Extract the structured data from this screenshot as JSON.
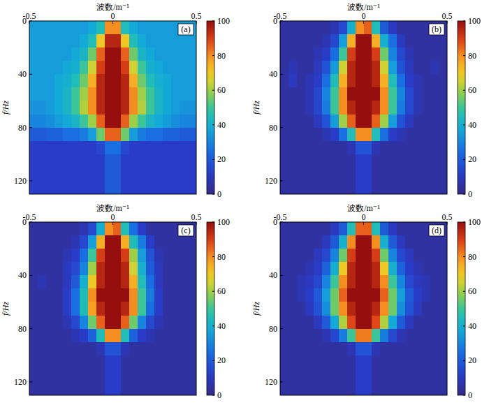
{
  "chart_data": [
    {
      "type": "heatmap",
      "title": "(a)",
      "x_label": "波数/m⁻¹",
      "y_label": "f/Hz",
      "xlim": [
        -0.5,
        0.5
      ],
      "xticks": [
        -0.5,
        0,
        0.5
      ],
      "ylim": [
        0,
        130
      ],
      "yticks": [
        0,
        40,
        80,
        120
      ],
      "x_bins": [
        -0.5,
        -0.45,
        -0.4,
        -0.35,
        -0.3,
        -0.25,
        -0.2,
        -0.15,
        -0.1,
        -0.05,
        0,
        0.05,
        0.1,
        0.15,
        0.2,
        0.25,
        0.3,
        0.35,
        0.4,
        0.45,
        0.5
      ],
      "y_bins": [
        0,
        10,
        20,
        30,
        40,
        50,
        60,
        70,
        80,
        90,
        100,
        110,
        120,
        130
      ],
      "values": [
        [
          35,
          35,
          35,
          35,
          35,
          35,
          35,
          38,
          45,
          80,
          80,
          45,
          38,
          35,
          35,
          35,
          35,
          35,
          35,
          35
        ],
        [
          35,
          35,
          35,
          35,
          35,
          35,
          38,
          45,
          70,
          95,
          95,
          70,
          45,
          38,
          35,
          35,
          35,
          35,
          35,
          35
        ],
        [
          35,
          35,
          35,
          35,
          35,
          38,
          42,
          55,
          85,
          100,
          100,
          85,
          55,
          42,
          38,
          35,
          35,
          35,
          35,
          35
        ],
        [
          35,
          35,
          35,
          35,
          38,
          40,
          50,
          65,
          90,
          100,
          100,
          90,
          65,
          50,
          40,
          38,
          35,
          35,
          35,
          35
        ],
        [
          35,
          35,
          35,
          38,
          40,
          45,
          55,
          75,
          95,
          100,
          100,
          95,
          75,
          55,
          45,
          40,
          38,
          35,
          35,
          35
        ],
        [
          35,
          35,
          35,
          38,
          42,
          50,
          60,
          80,
          95,
          100,
          100,
          95,
          80,
          60,
          50,
          42,
          38,
          35,
          35,
          35
        ],
        [
          33,
          33,
          35,
          38,
          42,
          50,
          62,
          80,
          95,
          100,
          100,
          95,
          80,
          62,
          50,
          42,
          38,
          35,
          33,
          33
        ],
        [
          30,
          30,
          32,
          35,
          38,
          42,
          50,
          60,
          85,
          100,
          100,
          85,
          60,
          50,
          42,
          38,
          35,
          32,
          30,
          30
        ],
        [
          20,
          20,
          22,
          22,
          25,
          25,
          28,
          35,
          55,
          85,
          85,
          55,
          35,
          28,
          25,
          25,
          22,
          22,
          20,
          20
        ],
        [
          12,
          12,
          12,
          12,
          12,
          12,
          12,
          12,
          15,
          25,
          25,
          15,
          12,
          12,
          12,
          12,
          12,
          12,
          12,
          12
        ],
        [
          12,
          12,
          12,
          12,
          12,
          12,
          12,
          12,
          12,
          20,
          20,
          12,
          12,
          12,
          12,
          12,
          12,
          12,
          12,
          12
        ],
        [
          12,
          12,
          12,
          12,
          12,
          12,
          12,
          12,
          12,
          20,
          20,
          12,
          12,
          12,
          12,
          12,
          12,
          12,
          12,
          12
        ],
        [
          12,
          12,
          12,
          12,
          12,
          12,
          12,
          12,
          12,
          20,
          20,
          12,
          12,
          12,
          12,
          12,
          12,
          12,
          12,
          12
        ]
      ],
      "colorbar_range": [
        0,
        100
      ],
      "colorbar_ticks": [
        0,
        20,
        40,
        60,
        80,
        100
      ]
    },
    {
      "type": "heatmap",
      "title": "(b)",
      "x_label": "波数/m⁻¹",
      "y_label": "f/Hz",
      "xlim": [
        -0.5,
        0.5
      ],
      "xticks": [
        -0.5,
        0,
        0.5
      ],
      "ylim": [
        0,
        130
      ],
      "yticks": [
        0,
        40,
        80,
        120
      ],
      "x_bins": [
        -0.5,
        -0.45,
        -0.4,
        -0.35,
        -0.3,
        -0.25,
        -0.2,
        -0.15,
        -0.1,
        -0.05,
        0,
        0.05,
        0.1,
        0.15,
        0.2,
        0.25,
        0.3,
        0.35,
        0.4,
        0.45,
        0.5
      ],
      "y_bins": [
        0,
        10,
        20,
        30,
        40,
        50,
        60,
        70,
        80,
        90,
        100,
        110,
        120,
        130
      ],
      "values": [
        [
          5,
          5,
          5,
          5,
          5,
          5,
          8,
          15,
          40,
          80,
          85,
          45,
          20,
          10,
          5,
          5,
          5,
          5,
          5,
          5
        ],
        [
          5,
          5,
          5,
          5,
          5,
          8,
          15,
          35,
          75,
          100,
          100,
          75,
          40,
          25,
          10,
          5,
          5,
          5,
          5,
          5
        ],
        [
          5,
          5,
          5,
          5,
          8,
          12,
          25,
          50,
          90,
          100,
          100,
          90,
          55,
          30,
          15,
          8,
          5,
          5,
          5,
          5
        ],
        [
          5,
          8,
          5,
          5,
          10,
          18,
          35,
          65,
          95,
          100,
          100,
          95,
          65,
          35,
          18,
          10,
          5,
          5,
          8,
          5
        ],
        [
          5,
          10,
          5,
          8,
          12,
          25,
          45,
          75,
          95,
          100,
          100,
          95,
          75,
          45,
          25,
          12,
          8,
          5,
          5,
          5
        ],
        [
          5,
          5,
          5,
          8,
          15,
          30,
          50,
          80,
          100,
          100,
          100,
          100,
          80,
          50,
          30,
          15,
          8,
          5,
          5,
          5
        ],
        [
          5,
          5,
          5,
          8,
          15,
          28,
          50,
          80,
          95,
          100,
          100,
          95,
          80,
          50,
          28,
          15,
          8,
          5,
          5,
          5
        ],
        [
          5,
          5,
          5,
          5,
          10,
          18,
          35,
          60,
          85,
          100,
          100,
          85,
          60,
          35,
          18,
          10,
          5,
          5,
          5,
          5
        ],
        [
          5,
          5,
          5,
          5,
          5,
          8,
          12,
          25,
          45,
          80,
          80,
          45,
          25,
          12,
          8,
          5,
          5,
          5,
          5,
          5
        ],
        [
          5,
          5,
          5,
          5,
          5,
          5,
          5,
          5,
          8,
          18,
          18,
          8,
          5,
          5,
          5,
          5,
          5,
          5,
          5,
          5
        ],
        [
          5,
          5,
          5,
          5,
          5,
          5,
          5,
          5,
          5,
          12,
          12,
          5,
          5,
          5,
          5,
          5,
          5,
          5,
          5,
          5
        ],
        [
          5,
          5,
          5,
          5,
          5,
          5,
          5,
          5,
          5,
          12,
          12,
          5,
          5,
          5,
          5,
          5,
          5,
          5,
          5,
          5
        ],
        [
          5,
          5,
          5,
          5,
          5,
          5,
          5,
          5,
          5,
          12,
          12,
          5,
          5,
          5,
          5,
          5,
          5,
          5,
          5,
          5
        ]
      ],
      "colorbar_range": [
        0,
        100
      ],
      "colorbar_ticks": [
        0,
        20,
        40,
        60,
        80,
        100
      ]
    },
    {
      "type": "heatmap",
      "title": "(c)",
      "x_label": "波数/m⁻¹",
      "y_label": "f/Hz",
      "xlim": [
        -0.5,
        0.5
      ],
      "xticks": [
        -0.5,
        0,
        0.5
      ],
      "ylim": [
        0,
        130
      ],
      "yticks": [
        0,
        40,
        80,
        120
      ],
      "x_bins": [
        -0.5,
        -0.45,
        -0.4,
        -0.35,
        -0.3,
        -0.25,
        -0.2,
        -0.15,
        -0.1,
        -0.05,
        0,
        0.05,
        0.1,
        0.15,
        0.2,
        0.25,
        0.3,
        0.35,
        0.4,
        0.45,
        0.5
      ],
      "y_bins": [
        0,
        10,
        20,
        30,
        40,
        50,
        60,
        70,
        80,
        90,
        100,
        110,
        120,
        130
      ],
      "values": [
        [
          5,
          5,
          5,
          5,
          5,
          5,
          8,
          15,
          40,
          80,
          85,
          45,
          25,
          12,
          5,
          5,
          5,
          5,
          5,
          5
        ],
        [
          5,
          5,
          5,
          5,
          5,
          8,
          15,
          35,
          75,
          100,
          100,
          75,
          45,
          28,
          12,
          5,
          5,
          5,
          5,
          5
        ],
        [
          5,
          5,
          5,
          5,
          8,
          12,
          25,
          50,
          90,
          100,
          100,
          90,
          60,
          35,
          18,
          8,
          5,
          5,
          5,
          5
        ],
        [
          5,
          5,
          5,
          5,
          10,
          15,
          30,
          60,
          95,
          100,
          100,
          95,
          65,
          40,
          20,
          10,
          5,
          5,
          5,
          5
        ],
        [
          5,
          8,
          5,
          5,
          10,
          20,
          40,
          70,
          95,
          100,
          100,
          95,
          75,
          45,
          25,
          10,
          5,
          5,
          5,
          5
        ],
        [
          5,
          5,
          5,
          5,
          12,
          25,
          45,
          80,
          100,
          100,
          100,
          100,
          80,
          50,
          28,
          12,
          5,
          5,
          5,
          5
        ],
        [
          5,
          5,
          5,
          5,
          12,
          25,
          45,
          78,
          95,
          100,
          100,
          95,
          80,
          50,
          25,
          12,
          5,
          5,
          5,
          5
        ],
        [
          5,
          5,
          5,
          5,
          8,
          15,
          30,
          55,
          85,
          100,
          100,
          85,
          55,
          30,
          15,
          8,
          5,
          5,
          5,
          5
        ],
        [
          5,
          5,
          5,
          5,
          5,
          8,
          12,
          22,
          45,
          80,
          80,
          45,
          22,
          12,
          8,
          5,
          5,
          5,
          5,
          5
        ],
        [
          5,
          5,
          5,
          5,
          5,
          5,
          5,
          5,
          8,
          18,
          18,
          8,
          5,
          5,
          5,
          5,
          5,
          5,
          5,
          5
        ],
        [
          5,
          5,
          5,
          5,
          5,
          5,
          5,
          5,
          5,
          12,
          12,
          5,
          5,
          5,
          5,
          5,
          5,
          5,
          5,
          5
        ],
        [
          5,
          5,
          5,
          5,
          5,
          5,
          5,
          5,
          5,
          12,
          12,
          5,
          5,
          5,
          5,
          5,
          5,
          5,
          5,
          5
        ],
        [
          5,
          5,
          5,
          5,
          5,
          5,
          5,
          5,
          5,
          12,
          12,
          5,
          5,
          5,
          5,
          5,
          5,
          5,
          5,
          5
        ]
      ],
      "colorbar_range": [
        0,
        100
      ],
      "colorbar_ticks": [
        0,
        20,
        40,
        60,
        80,
        100
      ]
    },
    {
      "type": "heatmap",
      "title": "(d)",
      "x_label": "波数/m⁻¹",
      "y_label": "f/Hz",
      "xlim": [
        -0.5,
        0.5
      ],
      "xticks": [
        -0.5,
        0,
        0.5
      ],
      "ylim": [
        0,
        130
      ],
      "yticks": [
        0,
        40,
        80,
        120
      ],
      "x_bins": [
        -0.5,
        -0.45,
        -0.4,
        -0.35,
        -0.3,
        -0.25,
        -0.2,
        -0.15,
        -0.1,
        -0.05,
        0,
        0.05,
        0.1,
        0.15,
        0.2,
        0.25,
        0.3,
        0.35,
        0.4,
        0.45,
        0.5
      ],
      "y_bins": [
        0,
        10,
        20,
        30,
        40,
        50,
        60,
        70,
        80,
        90,
        100,
        110,
        120,
        130
      ],
      "values": [
        [
          5,
          5,
          5,
          5,
          5,
          5,
          10,
          20,
          45,
          85,
          85,
          45,
          20,
          10,
          5,
          5,
          5,
          5,
          5,
          5
        ],
        [
          5,
          5,
          5,
          5,
          5,
          10,
          20,
          40,
          80,
          100,
          100,
          80,
          40,
          20,
          10,
          5,
          5,
          5,
          5,
          5
        ],
        [
          5,
          5,
          5,
          5,
          10,
          15,
          30,
          55,
          90,
          100,
          100,
          90,
          55,
          30,
          15,
          10,
          5,
          5,
          5,
          5
        ],
        [
          5,
          5,
          5,
          8,
          12,
          22,
          40,
          70,
          95,
          100,
          100,
          95,
          70,
          40,
          22,
          12,
          8,
          5,
          5,
          5
        ],
        [
          5,
          5,
          8,
          10,
          15,
          30,
          50,
          80,
          95,
          100,
          100,
          95,
          80,
          50,
          30,
          15,
          10,
          8,
          5,
          5
        ],
        [
          5,
          5,
          8,
          12,
          20,
          35,
          55,
          85,
          100,
          100,
          100,
          100,
          85,
          55,
          35,
          20,
          12,
          8,
          5,
          5
        ],
        [
          5,
          5,
          5,
          10,
          18,
          32,
          55,
          80,
          95,
          100,
          100,
          95,
          80,
          55,
          32,
          18,
          10,
          5,
          5,
          5
        ],
        [
          5,
          5,
          5,
          5,
          10,
          20,
          38,
          62,
          88,
          100,
          100,
          88,
          62,
          38,
          20,
          10,
          5,
          5,
          5,
          5
        ],
        [
          5,
          5,
          5,
          5,
          5,
          8,
          15,
          28,
          50,
          82,
          82,
          50,
          28,
          15,
          8,
          5,
          5,
          5,
          5,
          5
        ],
        [
          5,
          5,
          5,
          5,
          5,
          5,
          5,
          5,
          8,
          18,
          18,
          8,
          5,
          5,
          5,
          5,
          5,
          5,
          5,
          5
        ],
        [
          5,
          5,
          5,
          5,
          5,
          5,
          5,
          5,
          5,
          12,
          12,
          5,
          5,
          5,
          5,
          5,
          5,
          5,
          5,
          5
        ],
        [
          5,
          5,
          5,
          5,
          5,
          5,
          5,
          5,
          5,
          12,
          12,
          5,
          5,
          5,
          5,
          5,
          5,
          5,
          5,
          5
        ],
        [
          5,
          5,
          5,
          5,
          5,
          5,
          5,
          5,
          5,
          12,
          12,
          5,
          5,
          5,
          5,
          5,
          5,
          5,
          5,
          5
        ]
      ],
      "colorbar_range": [
        0,
        100
      ],
      "colorbar_ticks": [
        0,
        20,
        40,
        60,
        80,
        100
      ]
    }
  ]
}
